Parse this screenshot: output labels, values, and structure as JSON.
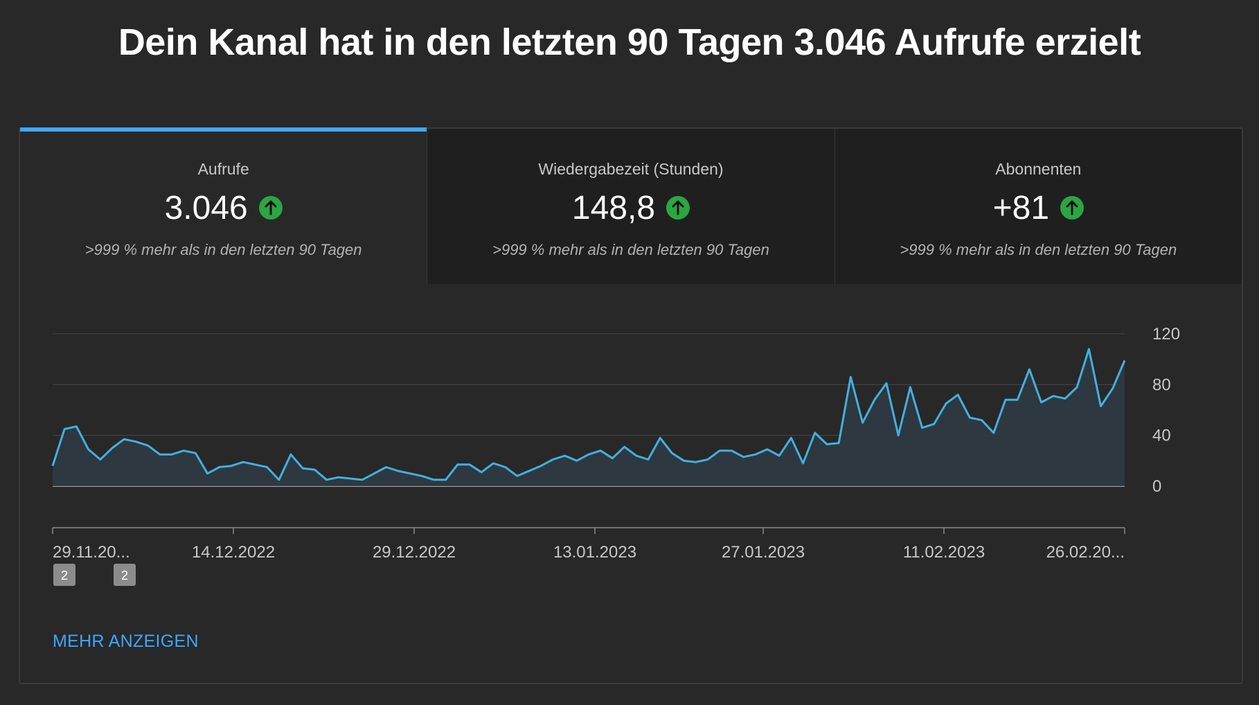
{
  "headline": "Dein Kanal hat in den letzten 90 Tagen 3.046 Aufrufe erzielt",
  "tabs": [
    {
      "label": "Aufrufe",
      "value": "3.046",
      "compare": ">999 % mehr als in den letzten 90 Tagen",
      "trend": "up",
      "active": true
    },
    {
      "label": "Wiedergabezeit (Stunden)",
      "value": "148,8",
      "compare": ">999 % mehr als in den letzten 90 Tagen",
      "trend": "up",
      "active": false
    },
    {
      "label": "Abonnenten",
      "value": "+81",
      "compare": ">999 % mehr als in den letzten 90 Tagen",
      "trend": "up",
      "active": false
    }
  ],
  "more_link": "MEHR ANZEIGEN",
  "colors": {
    "accent": "#3ea6ff",
    "line": "#42b0e0",
    "trend_up": "#2ba640",
    "background": "#282828"
  },
  "chart_data": {
    "type": "area",
    "series": [
      {
        "values": [
          16,
          45,
          47,
          29,
          21,
          30,
          37,
          35,
          32,
          25,
          25,
          28,
          26,
          10,
          15,
          16,
          19,
          17,
          15,
          5,
          25,
          14,
          13,
          5,
          7,
          6,
          5,
          10,
          15,
          12,
          10,
          8,
          5,
          5,
          17,
          17,
          11,
          18,
          15,
          8,
          12,
          16,
          21,
          24,
          20,
          25,
          28,
          22,
          31,
          24,
          21,
          38,
          26,
          20,
          19,
          21,
          28,
          28,
          23,
          25,
          29,
          24,
          38,
          18,
          42,
          33,
          34,
          86,
          50,
          68,
          81,
          40,
          78,
          46,
          49,
          65,
          72,
          54,
          52,
          42,
          68,
          68,
          92,
          66,
          71,
          69,
          78,
          108,
          63,
          77,
          99
        ]
      }
    ],
    "x_ticks": [
      "29.11.20...",
      "14.12.2022",
      "29.12.2022",
      "13.01.2023",
      "27.01.2023",
      "11.02.2023",
      "26.02.20..."
    ],
    "y_ticks": [
      "0",
      "40",
      "80",
      "120"
    ],
    "ylim": [
      0,
      120
    ],
    "grid": true,
    "y_axis_side": "right",
    "annotations": [
      {
        "label": "2",
        "day_index": 1
      },
      {
        "label": "2",
        "day_index": 6
      }
    ]
  }
}
